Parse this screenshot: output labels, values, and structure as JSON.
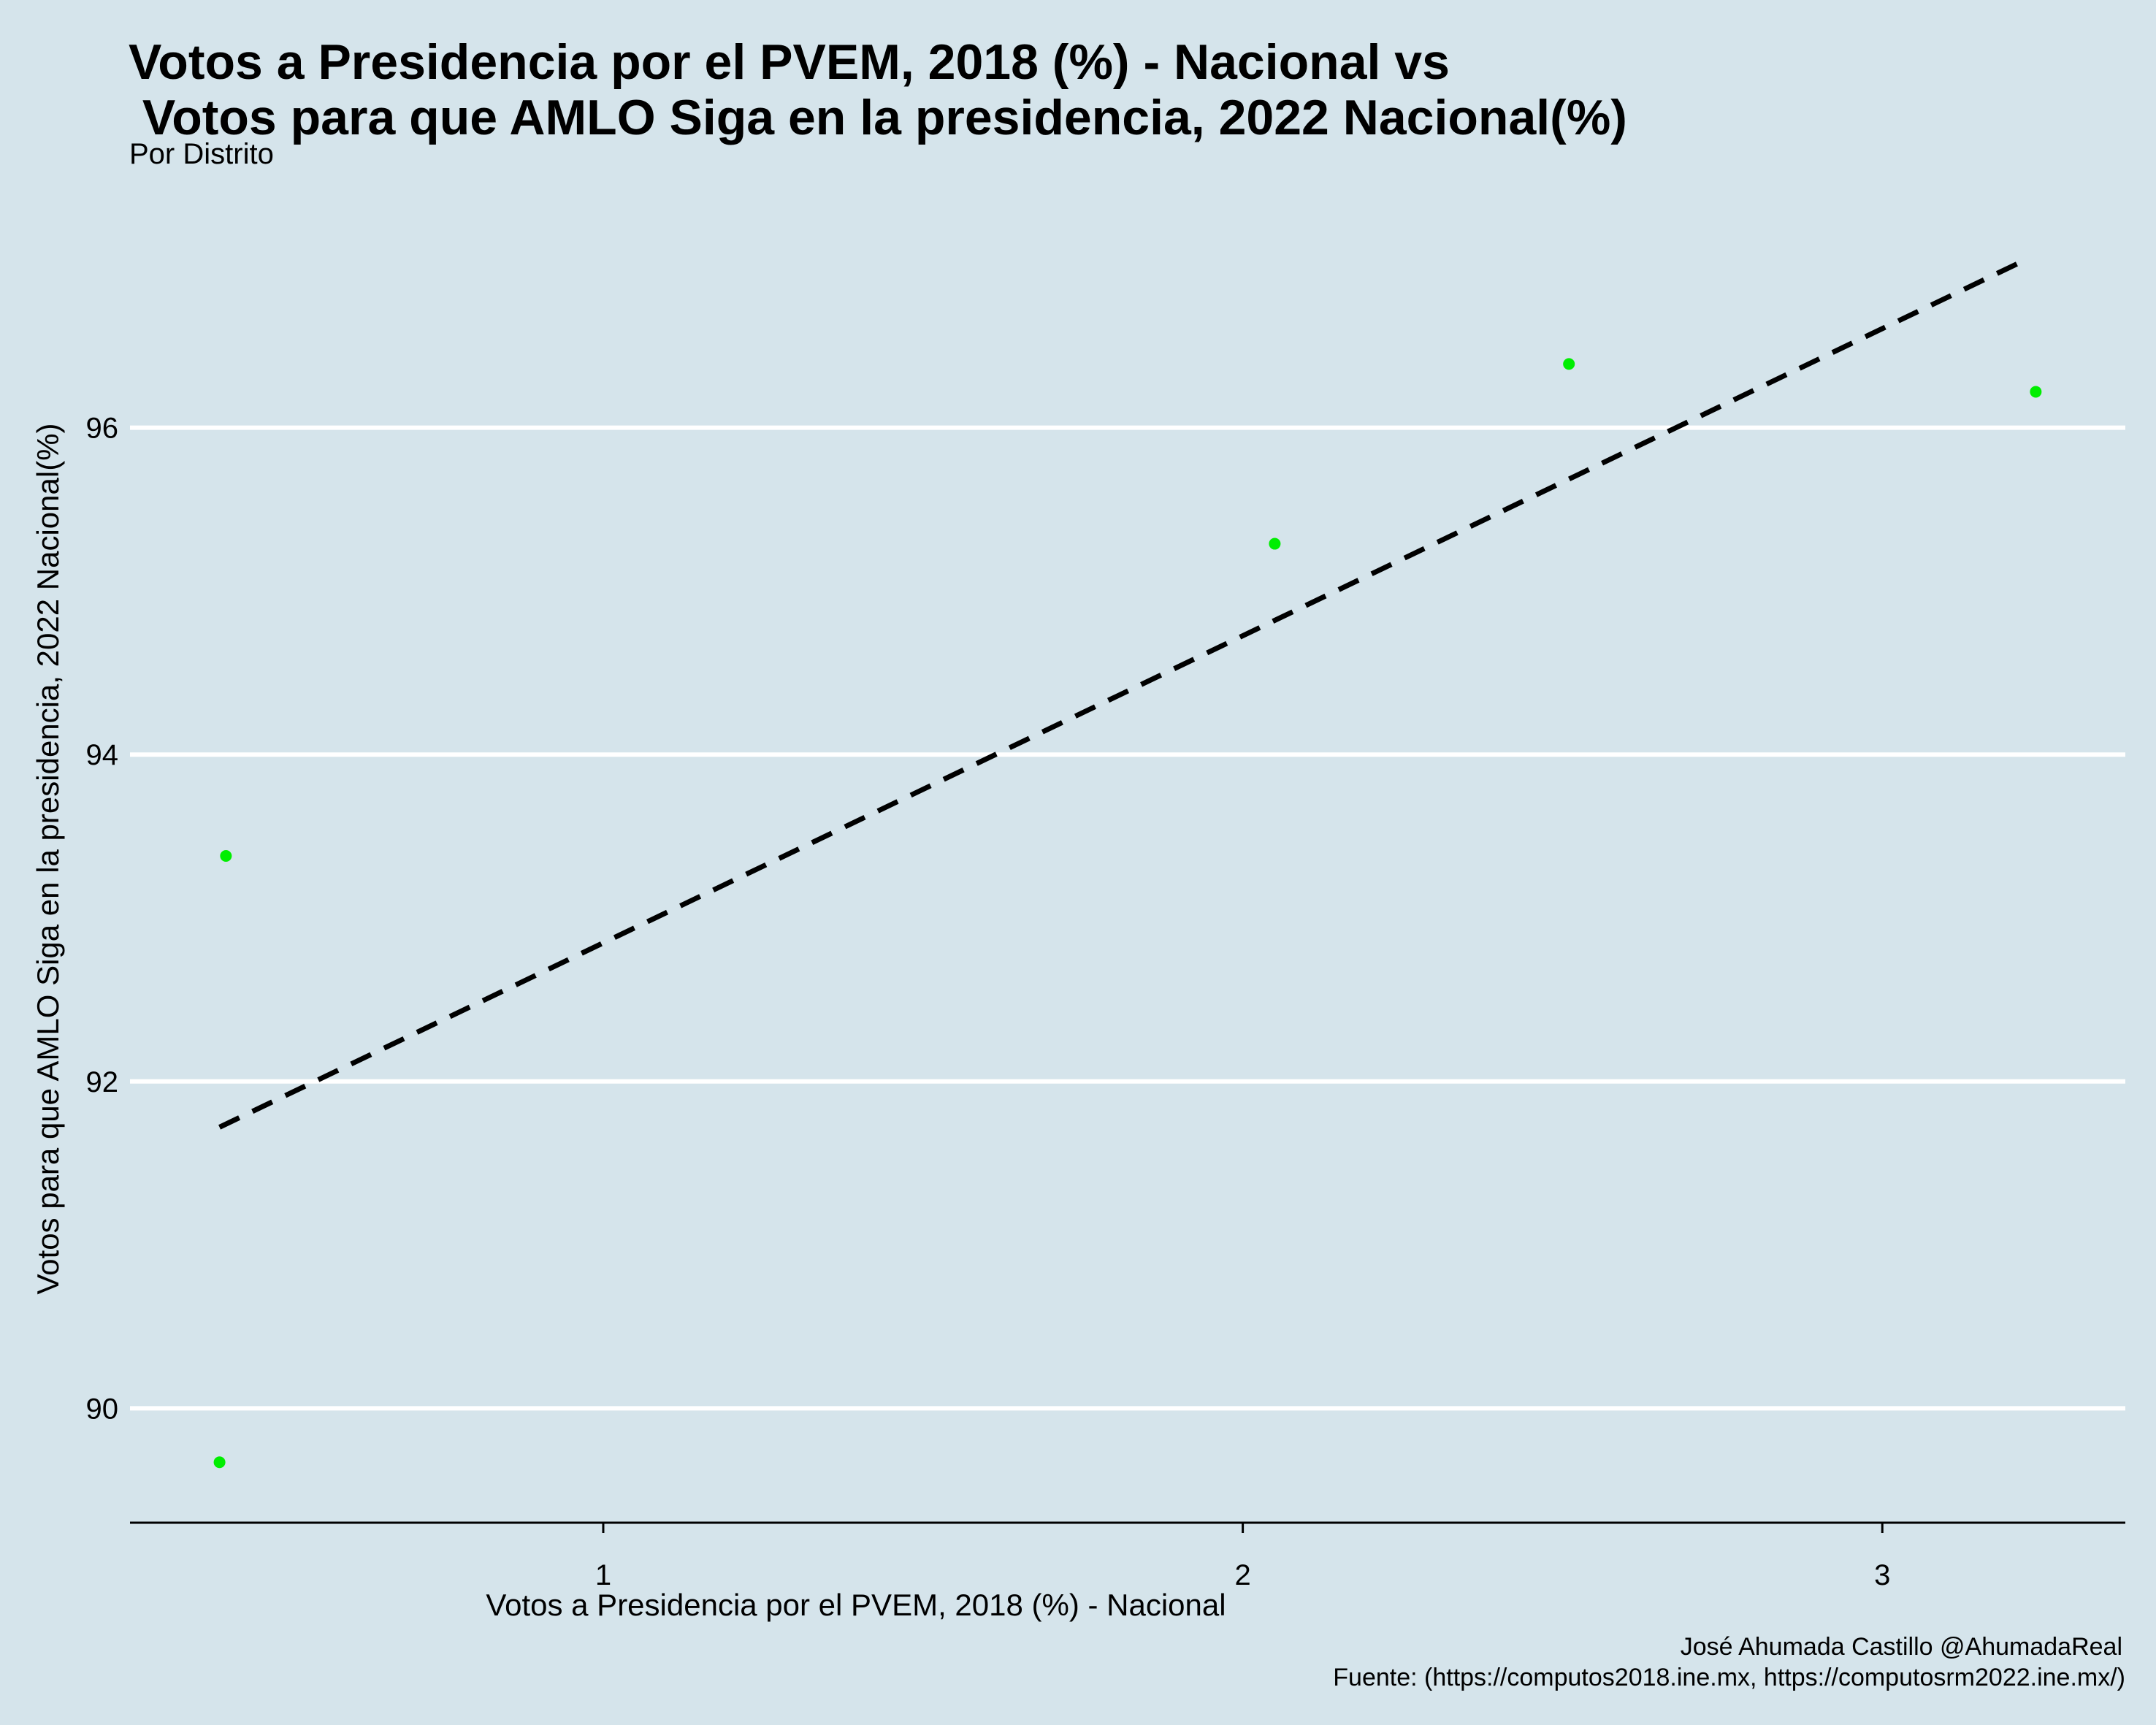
{
  "chart_data": {
    "type": "scatter",
    "title_line1": "Votos a Presidencia por el PVEM, 2018 (%) - Nacional vs",
    "title_line2": " Votos para que AMLO Siga en la presidencia, 2022 Nacional(%)",
    "subtitle": "Por Distrito",
    "xlabel": "Votos a Presidencia por el PVEM, 2018 (%) - Nacional",
    "ylabel": "Votos para que AMLO Siga en la presidencia, 2022 Nacional(%)",
    "caption_line1": "José Ahumada Castillo @AhumadaReal",
    "caption_line2": "Fuente: (https://computos2018.ine.mx, https://computosrm2022.ine.mx/)",
    "xlim": [
      0.26,
      3.38
    ],
    "ylim": [
      89.3,
      97.5
    ],
    "x_ticks": [
      1,
      2,
      3
    ],
    "y_ticks": [
      90,
      92,
      94,
      96
    ],
    "grid": "horizontal",
    "points": [
      {
        "x": 0.41,
        "y": 93.38
      },
      {
        "x": 0.4,
        "y": 89.67
      },
      {
        "x": 2.05,
        "y": 95.29
      },
      {
        "x": 2.51,
        "y": 96.39
      },
      {
        "x": 3.24,
        "y": 96.22
      }
    ],
    "trend_line": {
      "x": [
        0.4,
        3.22
      ],
      "y": [
        91.72,
        97.02
      ]
    },
    "point_color": "#00ee00",
    "line_color": "#000000",
    "grid_color": "#ffffff",
    "background": "#d5e4eb"
  }
}
